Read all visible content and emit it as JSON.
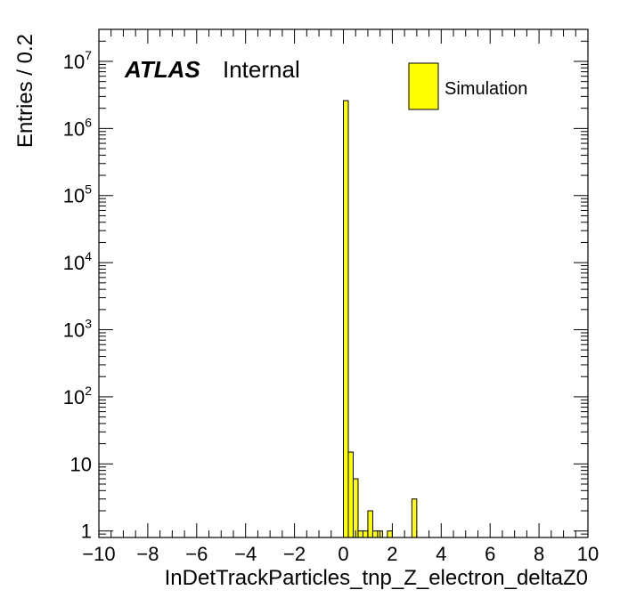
{
  "chart_data": {
    "type": "bar",
    "title": "",
    "xlabel": "InDetTrackParticles_tnp_Z_electron_deltaZ0",
    "ylabel": "Entries / 0.2",
    "xlim": [
      -10,
      10
    ],
    "ylim": [
      0.8,
      30000000
    ],
    "yscale": "log",
    "bin_width": 0.2,
    "grid": false,
    "legend_position": "top-right",
    "x_tick_labels": [
      "−10",
      "−8",
      "−6",
      "−4",
      "−2",
      "0",
      "2",
      "4",
      "6",
      "8",
      "10"
    ],
    "x_tick_values": [
      -10,
      -8,
      -6,
      -4,
      -2,
      0,
      2,
      4,
      6,
      8,
      10
    ],
    "y_tick_labels": [
      {
        "value": 1,
        "base": "1",
        "exp": ""
      },
      {
        "value": 10,
        "base": "10",
        "exp": ""
      },
      {
        "value": 100,
        "base": "10",
        "exp": "2"
      },
      {
        "value": 1000,
        "base": "10",
        "exp": "3"
      },
      {
        "value": 10000,
        "base": "10",
        "exp": "4"
      },
      {
        "value": 100000,
        "base": "10",
        "exp": "5"
      },
      {
        "value": 1000000,
        "base": "10",
        "exp": "6"
      },
      {
        "value": 10000000,
        "base": "10",
        "exp": "7"
      }
    ],
    "series": [
      {
        "name": "Simulation",
        "color": "#ffff00",
        "edge_color": "#000000",
        "bins": [
          {
            "x_low": 0.0,
            "x_high": 0.2,
            "value": 2600000
          },
          {
            "x_low": 0.2,
            "x_high": 0.4,
            "value": 15
          },
          {
            "x_low": 0.4,
            "x_high": 0.6,
            "value": 6
          },
          {
            "x_low": 0.6,
            "x_high": 0.8,
            "value": 1
          },
          {
            "x_low": 0.8,
            "x_high": 1.0,
            "value": 1
          },
          {
            "x_low": 1.0,
            "x_high": 1.2,
            "value": 2
          },
          {
            "x_low": 1.2,
            "x_high": 1.4,
            "value": 1
          },
          {
            "x_low": 1.4,
            "x_high": 1.6,
            "value": 1
          },
          {
            "x_low": 1.8,
            "x_high": 2.0,
            "value": 1
          },
          {
            "x_low": 2.8,
            "x_high": 3.0,
            "value": 3
          }
        ]
      }
    ],
    "annotations": {
      "experiment": "ATLAS",
      "status": "Internal"
    }
  }
}
